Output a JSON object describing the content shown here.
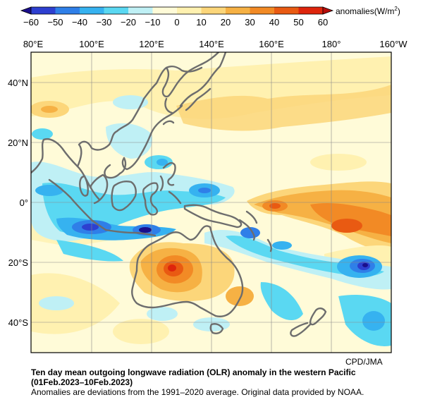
{
  "colorbar": {
    "ticks": [
      "−60",
      "−50",
      "−40",
      "−30",
      "−20",
      "−10",
      "0",
      "10",
      "20",
      "30",
      "40",
      "50",
      "60"
    ],
    "colors": [
      "#1a0f8c",
      "#2d3fd0",
      "#2f7fe8",
      "#36b2f0",
      "#5ad8f2",
      "#bff0f5",
      "#fffbd8",
      "#fff1b0",
      "#fcd67a",
      "#f6b144",
      "#f28a25",
      "#e95a12",
      "#de250c",
      "#b80d0a"
    ],
    "unit_prefix": "anomalies(W/m",
    "unit_sup": "2",
    "unit_suffix": ")"
  },
  "map": {
    "lon_labels": [
      "80°E",
      "100°E",
      "120°E",
      "140°E",
      "160°E",
      "180°",
      "160°W"
    ],
    "lat_labels": [
      "40°N",
      "20°N",
      "0°",
      "20°S",
      "40°S"
    ],
    "lon_range": [
      "80°E",
      "160°W"
    ],
    "lat_range": [
      "50°N",
      "50°S"
    ]
  },
  "credit": "CPD/JMA",
  "caption": {
    "title": "Ten day mean outgoing longwave radiation (OLR) anomaly in the western Pacific",
    "period": "(01Feb.2023–10Feb.2023)",
    "note": "Anomalies are deviations from the 1991–2020 average. Original data provided by NOAA."
  }
}
